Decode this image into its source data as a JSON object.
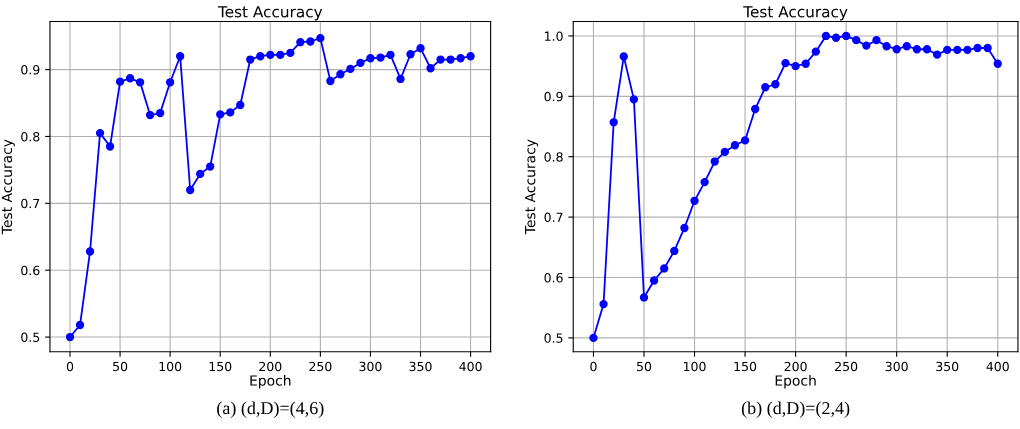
{
  "chart_data": [
    {
      "type": "line",
      "title": "Test Accuracy",
      "xlabel": "Epoch",
      "ylabel": "Test Accuracy",
      "annotations": [
        "(a) (d,D)=(4,6)"
      ],
      "x": [
        0,
        10,
        20,
        30,
        40,
        50,
        60,
        70,
        80,
        90,
        100,
        110,
        120,
        130,
        140,
        150,
        160,
        170,
        180,
        190,
        200,
        210,
        220,
        230,
        240,
        250,
        260,
        270,
        280,
        290,
        300,
        310,
        320,
        330,
        340,
        350,
        360,
        370,
        380,
        390,
        400
      ],
      "series": [
        {
          "color": "#0000ff",
          "values": [
            0.5,
            0.518,
            0.628,
            0.805,
            0.785,
            0.882,
            0.887,
            0.881,
            0.832,
            0.835,
            0.881,
            0.92,
            0.72,
            0.744,
            0.755,
            0.833,
            0.836,
            0.847,
            0.915,
            0.92,
            0.922,
            0.922,
            0.925,
            0.941,
            0.942,
            0.947,
            0.883,
            0.893,
            0.901,
            0.91,
            0.917,
            0.918,
            0.922,
            0.886,
            0.923,
            0.932,
            0.902,
            0.915,
            0.915,
            0.917,
            0.92
          ]
        }
      ],
      "xlim": [
        -20,
        420
      ],
      "xticks": [
        0,
        50,
        100,
        150,
        200,
        250,
        300,
        350,
        400
      ],
      "ylim": [
        0.478,
        0.972
      ],
      "yticks": [
        0.5,
        0.6,
        0.7,
        0.8,
        0.9
      ],
      "grid": true,
      "marker": "circle",
      "line_style": "solid"
    },
    {
      "type": "line",
      "title": "Test Accuracy",
      "xlabel": "Epoch",
      "ylabel": "Test Accuracy",
      "annotations": [
        "(b) (d,D)=(2,4)"
      ],
      "x": [
        0,
        10,
        20,
        30,
        40,
        50,
        60,
        70,
        80,
        90,
        100,
        110,
        120,
        130,
        140,
        150,
        160,
        170,
        180,
        190,
        200,
        210,
        220,
        230,
        240,
        250,
        260,
        270,
        280,
        290,
        300,
        310,
        320,
        330,
        340,
        350,
        360,
        370,
        380,
        390,
        400
      ],
      "series": [
        {
          "color": "#0000ff",
          "values": [
            0.5,
            0.556,
            0.857,
            0.966,
            0.895,
            0.567,
            0.595,
            0.615,
            0.644,
            0.682,
            0.727,
            0.758,
            0.792,
            0.808,
            0.819,
            0.827,
            0.879,
            0.915,
            0.92,
            0.955,
            0.95,
            0.954,
            0.974,
            1.0,
            0.997,
            1.0,
            0.993,
            0.984,
            0.993,
            0.983,
            0.978,
            0.983,
            0.978,
            0.978,
            0.969,
            0.977,
            0.977,
            0.977,
            0.98,
            0.98,
            0.954
          ]
        }
      ],
      "xlim": [
        -20,
        420
      ],
      "xticks": [
        0,
        50,
        100,
        150,
        200,
        250,
        300,
        350,
        400
      ],
      "ylim": [
        0.477,
        1.024
      ],
      "yticks": [
        0.5,
        0.6,
        0.7,
        0.8,
        0.9,
        {
          "value": 1.0,
          "label": "1.0"
        }
      ],
      "grid": true,
      "marker": "circle",
      "line_style": "solid"
    }
  ]
}
